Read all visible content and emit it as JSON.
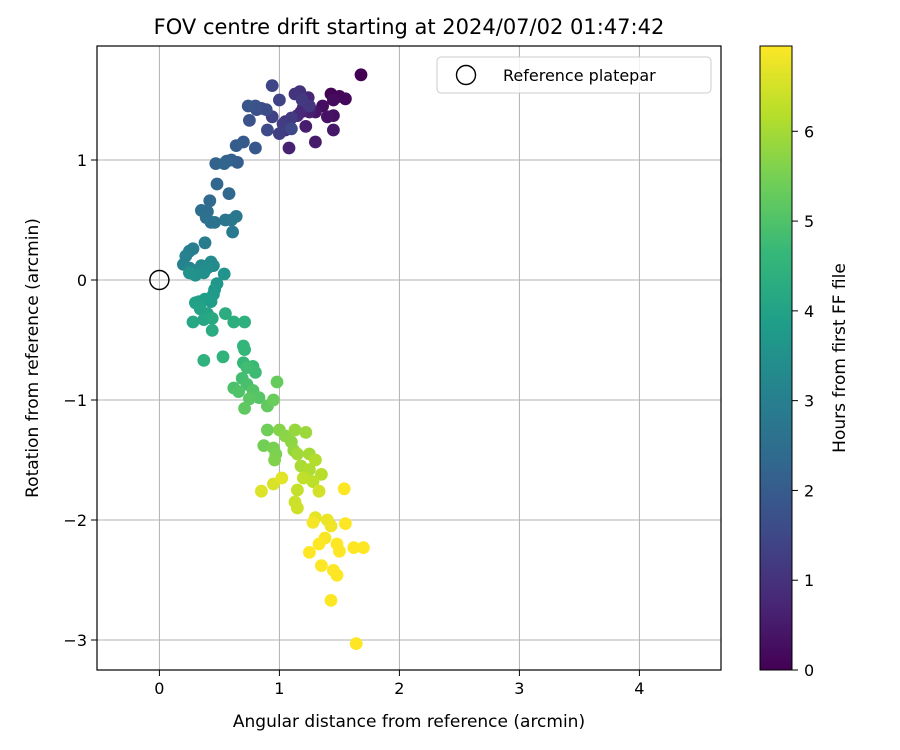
{
  "chart_data": {
    "type": "scatter",
    "title": "FOV centre drift starting at 2024/07/02 01:47:42",
    "xlabel": "Angular distance from reference (arcmin)",
    "ylabel": "Rotation from reference (arcmin)",
    "xlim": [
      -0.52,
      4.68
    ],
    "ylim": [
      -3.25,
      1.95
    ],
    "xticks": [
      0,
      1,
      2,
      3,
      4
    ],
    "xtick_labels": [
      "0",
      "1",
      "2",
      "3",
      "4"
    ],
    "yticks": [
      1,
      0,
      -1,
      -2,
      -3
    ],
    "ytick_labels": [
      "1",
      "0",
      "−1",
      "−2",
      "−3"
    ],
    "grid": true,
    "legend": {
      "location": "top-right",
      "entries": [
        "Reference platepar"
      ]
    },
    "reference_point": {
      "x": 0,
      "y": 0,
      "name": "Reference platepar"
    },
    "colorbar": {
      "label": "Hours from first FF file",
      "range": [
        0,
        6.95
      ],
      "ticks": [
        0,
        1,
        2,
        3,
        4,
        5,
        6
      ],
      "tick_labels": [
        "0",
        "1",
        "2",
        "3",
        "4",
        "5",
        "6"
      ],
      "colormap": "viridis",
      "colormap_stops": [
        "#440154",
        "#482878",
        "#3e4a89",
        "#31688e",
        "#26828e",
        "#1f9e89",
        "#35b779",
        "#6ece58",
        "#b5de2b",
        "#fde725"
      ]
    },
    "points": [
      [
        1.68,
        1.71,
        0.0
      ],
      [
        1.43,
        1.55,
        0.05
      ],
      [
        1.5,
        1.53,
        0.1
      ],
      [
        1.55,
        1.51,
        0.15
      ],
      [
        1.45,
        1.5,
        0.2
      ],
      [
        1.36,
        1.45,
        0.25
      ],
      [
        1.45,
        1.37,
        0.3
      ],
      [
        1.4,
        1.36,
        0.35
      ],
      [
        1.3,
        1.4,
        0.4
      ],
      [
        1.45,
        1.25,
        0.45
      ],
      [
        1.3,
        1.15,
        0.5
      ],
      [
        1.22,
        1.28,
        0.55
      ],
      [
        1.25,
        1.4,
        0.6
      ],
      [
        1.08,
        1.1,
        0.65
      ],
      [
        1.18,
        1.4,
        0.7
      ],
      [
        1.24,
        1.52,
        0.75
      ],
      [
        1.2,
        1.44,
        0.8
      ],
      [
        1.15,
        1.37,
        0.85
      ],
      [
        1.05,
        1.25,
        0.9
      ],
      [
        1.05,
        1.32,
        0.95
      ],
      [
        1.17,
        1.57,
        1.0
      ],
      [
        1.13,
        1.55,
        1.05
      ],
      [
        1.25,
        1.45,
        1.1
      ],
      [
        1.19,
        1.5,
        1.15
      ],
      [
        1.1,
        1.35,
        1.2
      ],
      [
        1.03,
        1.3,
        1.25
      ],
      [
        1.0,
        1.22,
        1.3
      ],
      [
        0.94,
        1.36,
        1.35
      ],
      [
        1.0,
        1.5,
        1.4
      ],
      [
        0.94,
        1.62,
        1.45
      ],
      [
        1.1,
        1.26,
        1.5
      ],
      [
        0.9,
        1.25,
        1.55
      ],
      [
        0.85,
        1.43,
        1.6
      ],
      [
        0.89,
        1.42,
        1.65
      ],
      [
        0.81,
        1.42,
        1.7
      ],
      [
        0.8,
        1.45,
        1.75
      ],
      [
        0.75,
        1.33,
        1.8
      ],
      [
        0.74,
        1.45,
        1.85
      ],
      [
        0.8,
        1.1,
        1.9
      ],
      [
        0.7,
        1.15,
        1.95
      ],
      [
        0.64,
        1.12,
        2.0
      ],
      [
        0.65,
        0.98,
        2.05
      ],
      [
        0.6,
        1.0,
        2.1
      ],
      [
        0.56,
        0.99,
        2.15
      ],
      [
        0.47,
        0.97,
        2.2
      ],
      [
        0.54,
        0.97,
        2.25
      ],
      [
        0.48,
        0.8,
        2.3
      ],
      [
        0.58,
        0.72,
        2.35
      ],
      [
        0.42,
        0.66,
        2.4
      ],
      [
        0.4,
        0.57,
        2.45
      ],
      [
        0.35,
        0.58,
        2.5
      ],
      [
        0.39,
        0.52,
        2.55
      ],
      [
        0.43,
        0.48,
        2.6
      ],
      [
        0.46,
        0.48,
        2.65
      ],
      [
        0.55,
        0.5,
        2.7
      ],
      [
        0.6,
        0.5,
        2.75
      ],
      [
        0.64,
        0.53,
        2.8
      ],
      [
        0.61,
        0.4,
        2.85
      ],
      [
        0.38,
        0.31,
        2.9
      ],
      [
        0.28,
        0.26,
        2.95
      ],
      [
        0.25,
        0.24,
        3.0
      ],
      [
        0.22,
        0.2,
        3.05
      ],
      [
        0.2,
        0.13,
        3.1
      ],
      [
        0.25,
        0.1,
        3.15
      ],
      [
        0.28,
        0.08,
        3.2
      ],
      [
        0.35,
        0.12,
        3.25
      ],
      [
        0.43,
        0.15,
        3.3
      ],
      [
        0.45,
        0.12,
        3.35
      ],
      [
        0.4,
        0.1,
        3.4
      ],
      [
        0.37,
        0.06,
        3.45
      ],
      [
        0.3,
        0.04,
        3.5
      ],
      [
        0.25,
        0.06,
        3.55
      ],
      [
        0.54,
        0.05,
        3.6
      ],
      [
        0.48,
        -0.03,
        3.65
      ],
      [
        0.46,
        -0.08,
        3.7
      ],
      [
        0.45,
        -0.12,
        3.75
      ],
      [
        0.43,
        -0.18,
        3.8
      ],
      [
        0.38,
        -0.16,
        3.85
      ],
      [
        0.33,
        -0.18,
        3.9
      ],
      [
        0.3,
        -0.19,
        3.95
      ],
      [
        0.34,
        -0.24,
        4.0
      ],
      [
        0.4,
        -0.28,
        4.05
      ],
      [
        0.37,
        -0.33,
        4.1
      ],
      [
        0.28,
        -0.35,
        4.15
      ],
      [
        0.44,
        -0.32,
        4.2
      ],
      [
        0.44,
        -0.42,
        4.25
      ],
      [
        0.55,
        -0.28,
        4.3
      ],
      [
        0.62,
        -0.35,
        4.35
      ],
      [
        0.71,
        -0.35,
        4.4
      ],
      [
        0.37,
        -0.67,
        4.45
      ],
      [
        0.53,
        -0.64,
        4.5
      ],
      [
        0.7,
        -0.55,
        4.55
      ],
      [
        0.71,
        -0.58,
        4.6
      ],
      [
        0.7,
        -0.69,
        4.65
      ],
      [
        0.78,
        -0.72,
        4.7
      ],
      [
        0.8,
        -0.77,
        4.75
      ],
      [
        0.73,
        -0.73,
        4.8
      ],
      [
        0.69,
        -0.82,
        4.85
      ],
      [
        0.73,
        -0.87,
        4.9
      ],
      [
        0.62,
        -0.9,
        4.95
      ],
      [
        0.66,
        -0.93,
        5.0
      ],
      [
        0.78,
        -0.92,
        5.05
      ],
      [
        0.83,
        -0.98,
        5.1
      ],
      [
        0.75,
        -0.99,
        5.15
      ],
      [
        0.71,
        -1.07,
        5.2
      ],
      [
        0.9,
        -1.05,
        5.25
      ],
      [
        0.98,
        -0.85,
        5.3
      ],
      [
        0.95,
        -1.0,
        5.35
      ],
      [
        0.9,
        -1.25,
        5.4
      ],
      [
        0.87,
        -1.38,
        5.45
      ],
      [
        0.95,
        -1.4,
        5.5
      ],
      [
        0.97,
        -1.45,
        5.55
      ],
      [
        0.96,
        -1.5,
        5.6
      ],
      [
        1.0,
        -1.25,
        5.65
      ],
      [
        1.05,
        -1.3,
        5.7
      ],
      [
        1.1,
        -1.35,
        5.75
      ],
      [
        1.12,
        -1.42,
        5.8
      ],
      [
        1.13,
        -1.25,
        5.85
      ],
      [
        1.22,
        -1.27,
        5.9
      ],
      [
        1.15,
        -1.45,
        5.95
      ],
      [
        1.25,
        -1.45,
        6.0
      ],
      [
        1.18,
        -1.55,
        6.05
      ],
      [
        1.25,
        -1.58,
        6.1
      ],
      [
        1.3,
        -1.5,
        6.15
      ],
      [
        1.35,
        -1.62,
        6.2
      ],
      [
        1.28,
        -1.68,
        6.25
      ],
      [
        1.2,
        -1.65,
        6.3
      ],
      [
        1.15,
        -1.75,
        6.35
      ],
      [
        1.13,
        -1.85,
        6.4
      ],
      [
        1.15,
        -1.9,
        6.45
      ],
      [
        1.33,
        -1.76,
        6.5
      ],
      [
        0.95,
        -1.7,
        6.55
      ],
      [
        0.85,
        -1.76,
        6.6
      ],
      [
        1.02,
        -1.65,
        6.65
      ],
      [
        1.3,
        -1.98,
        6.7
      ],
      [
        1.4,
        -2.0,
        6.75
      ],
      [
        1.43,
        -2.05,
        6.8
      ],
      [
        1.28,
        -2.02,
        6.85
      ],
      [
        1.38,
        -2.15,
        6.9
      ],
      [
        1.33,
        -2.2,
        6.95
      ],
      [
        1.48,
        -2.2,
        7.0
      ],
      [
        1.5,
        -2.26,
        7.05
      ],
      [
        1.25,
        -2.27,
        7.1
      ],
      [
        1.35,
        -2.38,
        7.15
      ],
      [
        1.45,
        -2.42,
        7.2
      ],
      [
        1.48,
        -2.46,
        7.25
      ],
      [
        1.55,
        -2.03,
        7.3
      ],
      [
        1.54,
        -1.74,
        7.35
      ],
      [
        1.62,
        -2.23,
        7.4
      ],
      [
        1.7,
        -2.23,
        7.45
      ],
      [
        1.43,
        -2.67,
        7.5
      ],
      [
        1.64,
        -3.03,
        7.55
      ]
    ]
  }
}
